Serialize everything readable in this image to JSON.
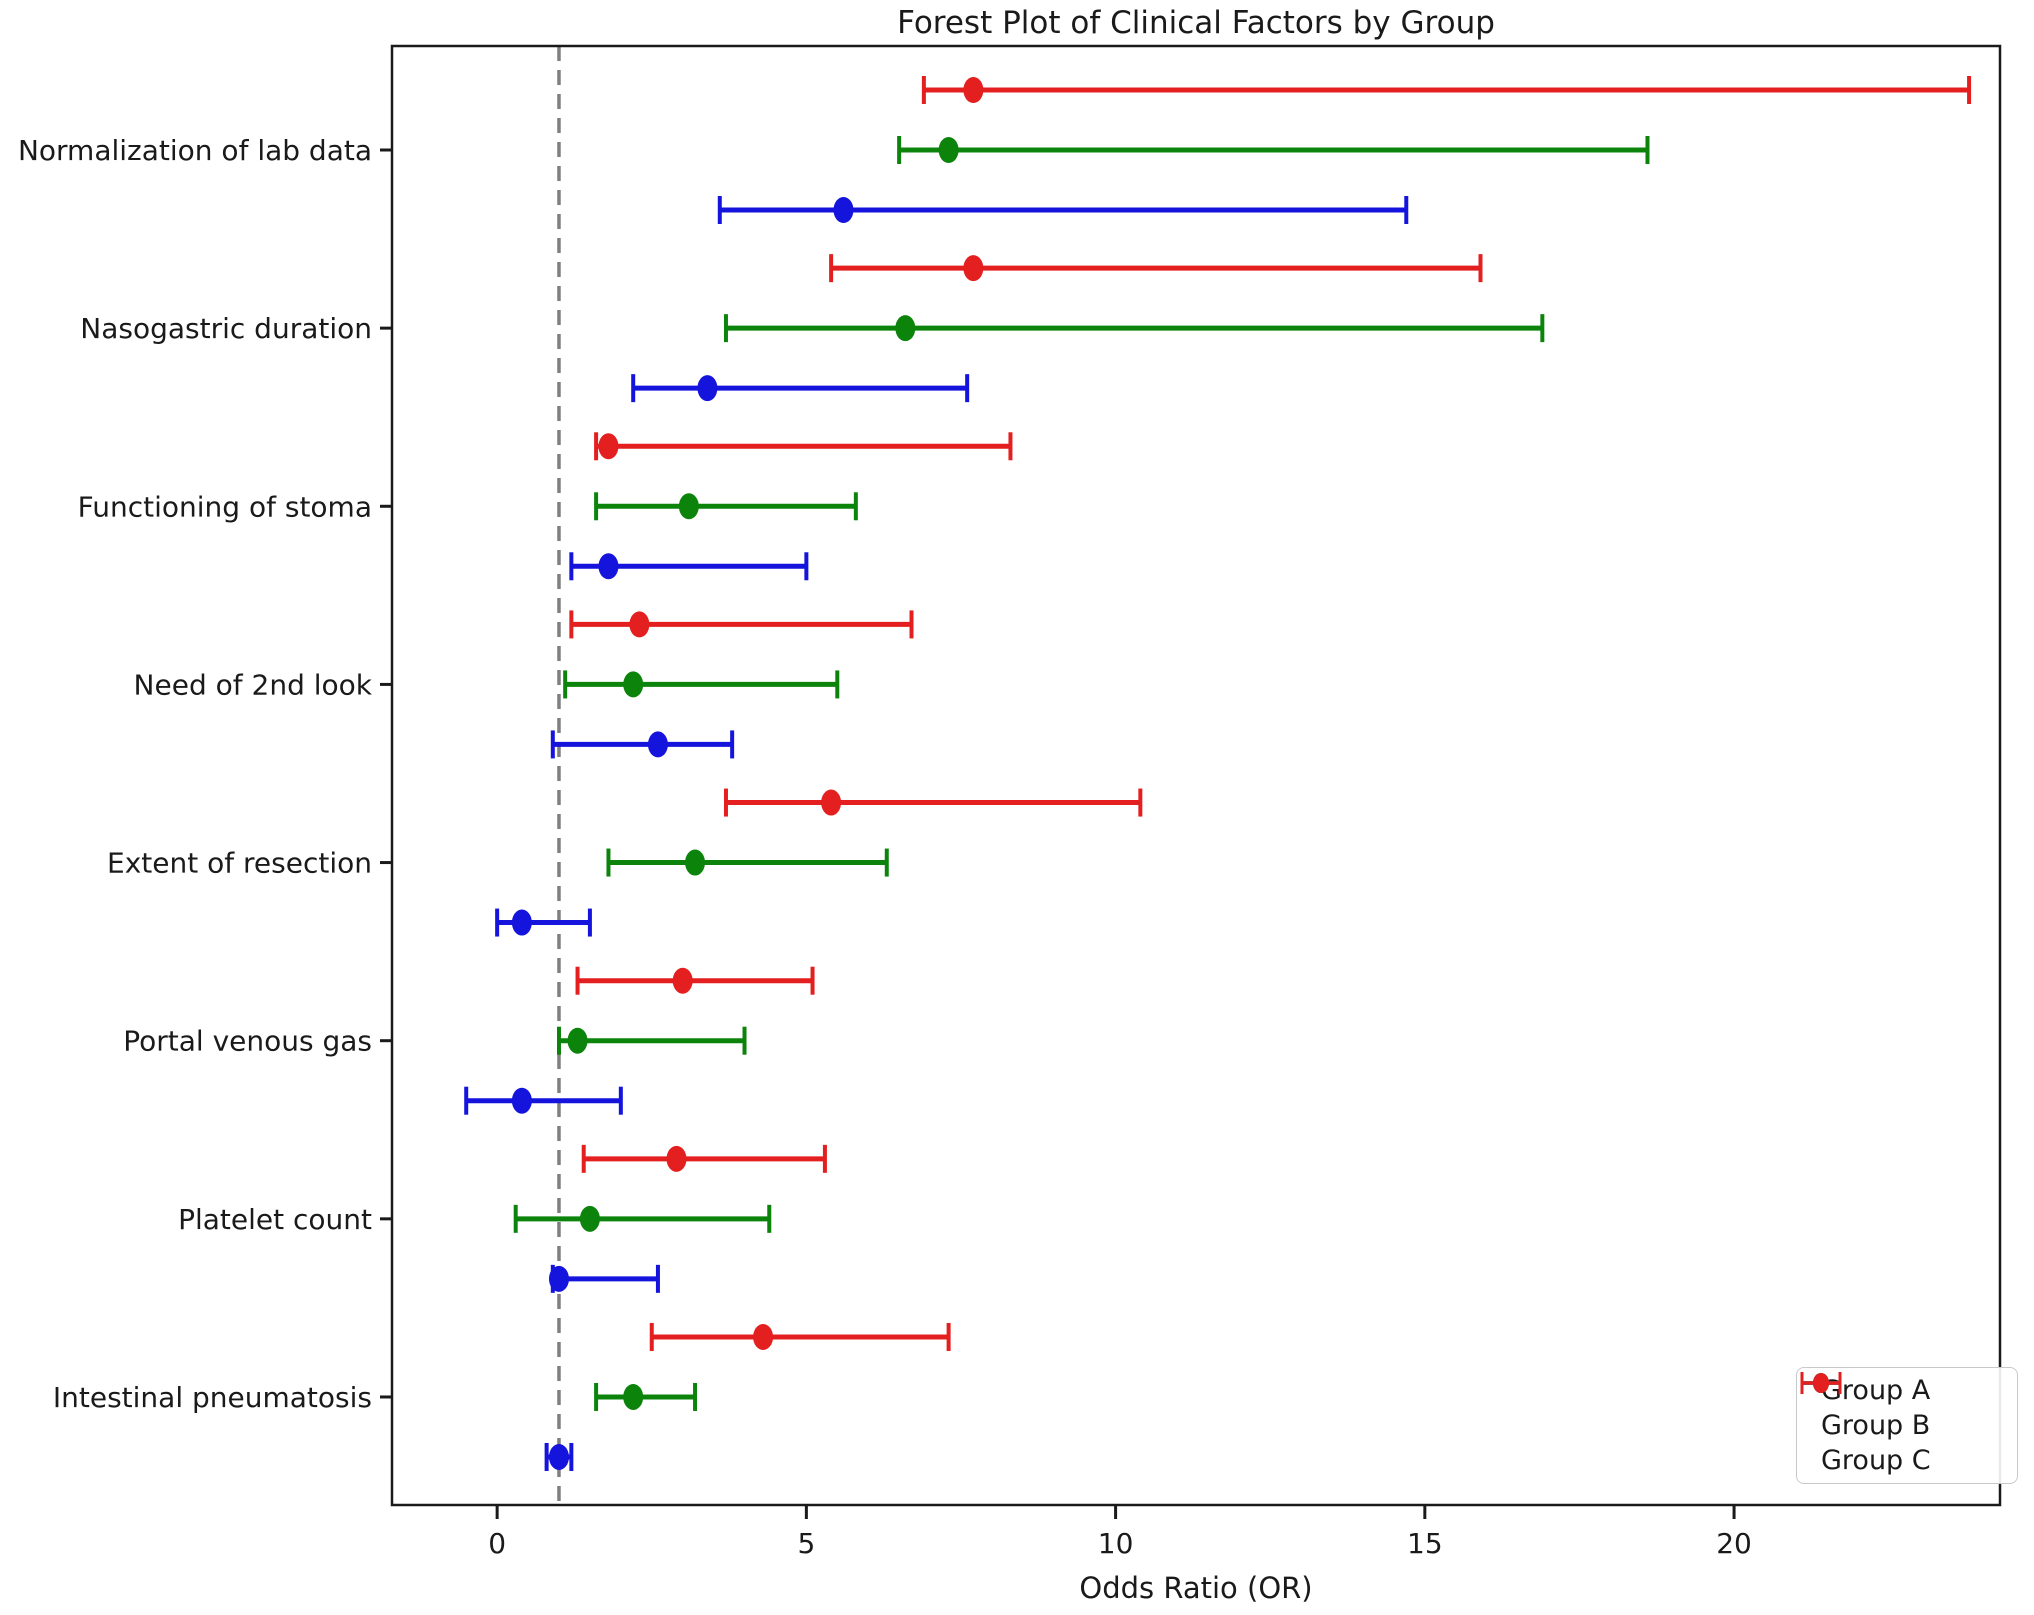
{
  "figure": {
    "title": "Forest Plot of Clinical Factors by Group",
    "xlabel": "Odds Ratio (OR)"
  },
  "chart_data": {
    "type": "forest_errorbar",
    "title": "Forest Plot of Clinical Factors by Group",
    "xlabel": "Odds Ratio (OR)",
    "ylabel": "",
    "grid": false,
    "categories": [
      "Normalization of lab data",
      "Nasogastric duration",
      "Functioning of stoma",
      "Need of 2nd look",
      "Extent of resection",
      "Portal venous gas",
      "Platelet count",
      "Intestinal pneumatosis"
    ],
    "x_ticks": [
      0,
      5,
      10,
      15,
      20
    ],
    "xlim": [
      -1.7,
      24.3
    ],
    "reference_line": {
      "x": 1,
      "style": "dashed",
      "color": "#7f7f7f"
    },
    "legend": {
      "position": "lower right",
      "entries": [
        {
          "label": "Group A",
          "color": "#1414dd"
        },
        {
          "label": "Group B",
          "color": "#0c840c"
        },
        {
          "label": "Group C",
          "color": "#e41f1f"
        }
      ]
    },
    "series": [
      {
        "name": "Group A",
        "color": "#1414dd",
        "points": [
          {
            "or": 5.6,
            "lo": 3.6,
            "hi": 14.7
          },
          {
            "or": 3.4,
            "lo": 2.2,
            "hi": 7.6
          },
          {
            "or": 1.8,
            "lo": 1.2,
            "hi": 5.0
          },
          {
            "or": 2.6,
            "lo": 0.9,
            "hi": 3.8
          },
          {
            "or": 0.4,
            "lo": 0.0,
            "hi": 1.5
          },
          {
            "or": 0.4,
            "lo": -0.5,
            "hi": 2.0
          },
          {
            "or": 1.0,
            "lo": 0.9,
            "hi": 2.6
          },
          {
            "or": 1.0,
            "lo": 0.8,
            "hi": 1.2
          }
        ]
      },
      {
        "name": "Group B",
        "color": "#0c840c",
        "points": [
          {
            "or": 7.3,
            "lo": 6.5,
            "hi": 18.6
          },
          {
            "or": 6.6,
            "lo": 3.7,
            "hi": 16.9
          },
          {
            "or": 3.1,
            "lo": 1.6,
            "hi": 5.8
          },
          {
            "or": 2.2,
            "lo": 1.1,
            "hi": 5.5
          },
          {
            "or": 3.2,
            "lo": 1.8,
            "hi": 6.3
          },
          {
            "or": 1.3,
            "lo": 1.0,
            "hi": 4.0
          },
          {
            "or": 1.5,
            "lo": 0.3,
            "hi": 4.4
          },
          {
            "or": 2.2,
            "lo": 1.6,
            "hi": 3.2
          }
        ]
      },
      {
        "name": "Group C",
        "color": "#e41f1f",
        "points": [
          {
            "or": 7.7,
            "lo": 6.9,
            "hi": 23.8
          },
          {
            "or": 7.7,
            "lo": 5.4,
            "hi": 15.9
          },
          {
            "or": 1.8,
            "lo": 1.6,
            "hi": 8.3
          },
          {
            "or": 2.3,
            "lo": 1.2,
            "hi": 6.7
          },
          {
            "or": 5.4,
            "lo": 3.7,
            "hi": 10.4
          },
          {
            "or": 3.0,
            "lo": 1.3,
            "hi": 5.1
          },
          {
            "or": 2.9,
            "lo": 1.4,
            "hi": 5.3
          },
          {
            "or": 4.3,
            "lo": 2.5,
            "hi": 7.3
          }
        ]
      }
    ]
  }
}
